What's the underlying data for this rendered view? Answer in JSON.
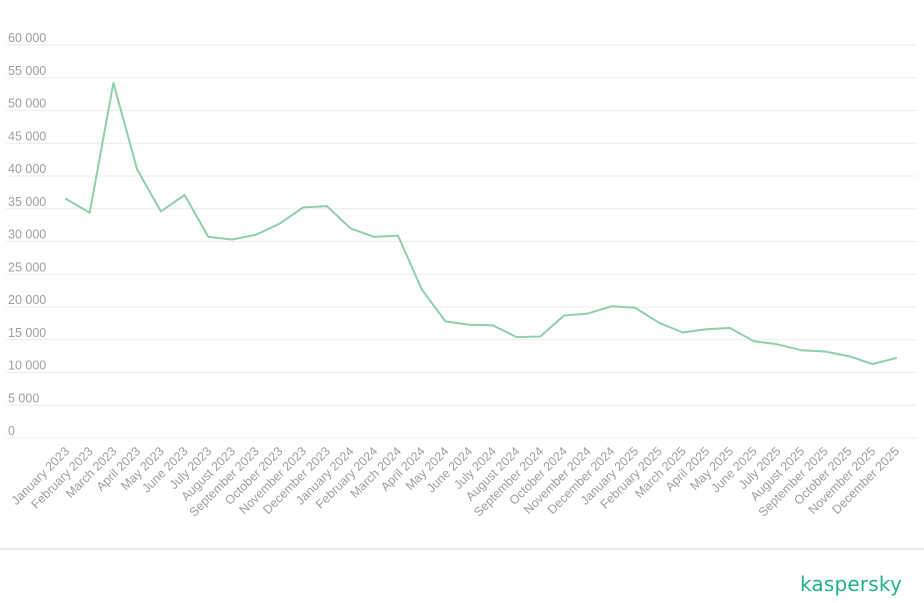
{
  "brand": {
    "logo_text": "kaspersky",
    "logo_color": "#1fb18a"
  },
  "colors": {
    "series": "#8fcfac",
    "grid": "#ececec",
    "tick_text": "#9e9e9e"
  },
  "chart_data": {
    "type": "line",
    "title": "",
    "xlabel": "",
    "ylabel": "",
    "ylim": [
      0,
      60000
    ],
    "grid": true,
    "legend": "none",
    "y_ticks": [
      "0",
      "5 000",
      "10 000",
      "15 000",
      "20 000",
      "25 000",
      "30 000",
      "35 000",
      "40 000",
      "45 000",
      "50 000",
      "55 000",
      "60 000"
    ],
    "y_tick_values": [
      0,
      5000,
      10000,
      15000,
      20000,
      25000,
      30000,
      35000,
      40000,
      45000,
      50000,
      55000,
      60000
    ],
    "categories": [
      "January 2023",
      "February 2023",
      "March 2023",
      "April 2023",
      "May 2023",
      "June 2023",
      "July 2023",
      "August 2023",
      "September 2023",
      "October 2023",
      "November 2023",
      "December 2023",
      "January 2024",
      "February 2024",
      "March 2024",
      "April 2024",
      "May 2024",
      "June 2024",
      "July 2024",
      "August 2024",
      "September 2024",
      "October 2024",
      "November 2024",
      "December 2024",
      "January 2025",
      "February 2025",
      "March 2025",
      "April 2025",
      "May 2025",
      "June 2025",
      "July 2025",
      "August 2025",
      "September 2025",
      "October 2025",
      "November 2025",
      "December 2025"
    ],
    "series": [
      {
        "values": [
          36500,
          34400,
          54200,
          41000,
          34600,
          37100,
          30700,
          30300,
          31000,
          32700,
          35200,
          35400,
          32000,
          30700,
          30900,
          22700,
          17800,
          17300,
          17200,
          15400,
          15500,
          18700,
          19000,
          20100,
          19900,
          17600,
          16100,
          16600,
          16800,
          14800,
          14300,
          13400,
          13200,
          12500,
          11300,
          12200
        ]
      }
    ]
  }
}
